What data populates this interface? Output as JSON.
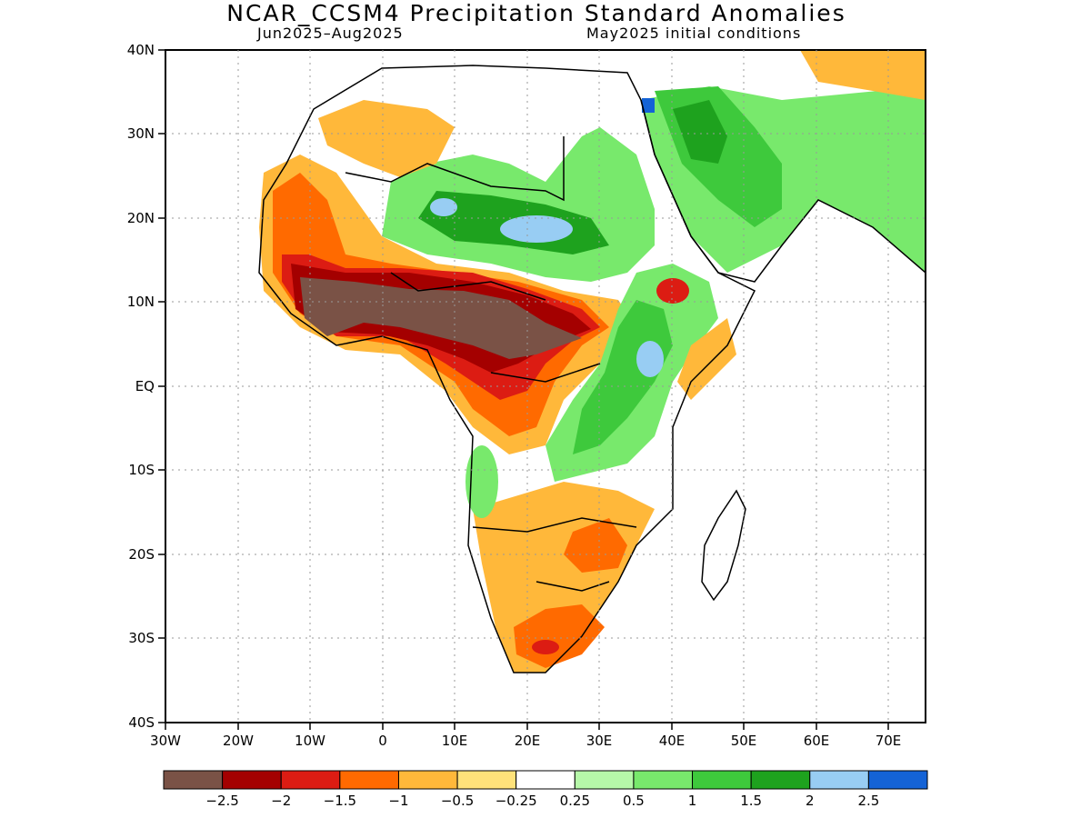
{
  "title": "NCAR_CCSM4 Precipitation Standard Anomalies",
  "subtitle_left": "Jun2025–Aug2025",
  "subtitle_right": "May2025 initial conditions",
  "map": {
    "lon_range": [
      -30,
      75
    ],
    "lat_range": [
      -40,
      40
    ],
    "lon_ticks": [
      "30W",
      "20W",
      "10W",
      "0",
      "10E",
      "20E",
      "30E",
      "40E",
      "50E",
      "60E",
      "70E"
    ],
    "lat_ticks": [
      "40N",
      "30N",
      "20N",
      "10N",
      "EQ",
      "10S",
      "20S",
      "30S",
      "40S"
    ]
  },
  "colorbar": {
    "colors": [
      "#7a5246",
      "#a40000",
      "#dc1c13",
      "#ff6a00",
      "#ffb83a",
      "#ffe27a",
      "#ffffff",
      "#b6f8a9",
      "#78e96c",
      "#3ec93c",
      "#1ea21e",
      "#98cdf3",
      "#1463d6"
    ],
    "labels": [
      "-2.5",
      "-2",
      "-1.5",
      "-1",
      "-0.5",
      "-0.25",
      "0.25",
      "0.5",
      "1",
      "1.5",
      "2",
      "2.5"
    ]
  }
}
